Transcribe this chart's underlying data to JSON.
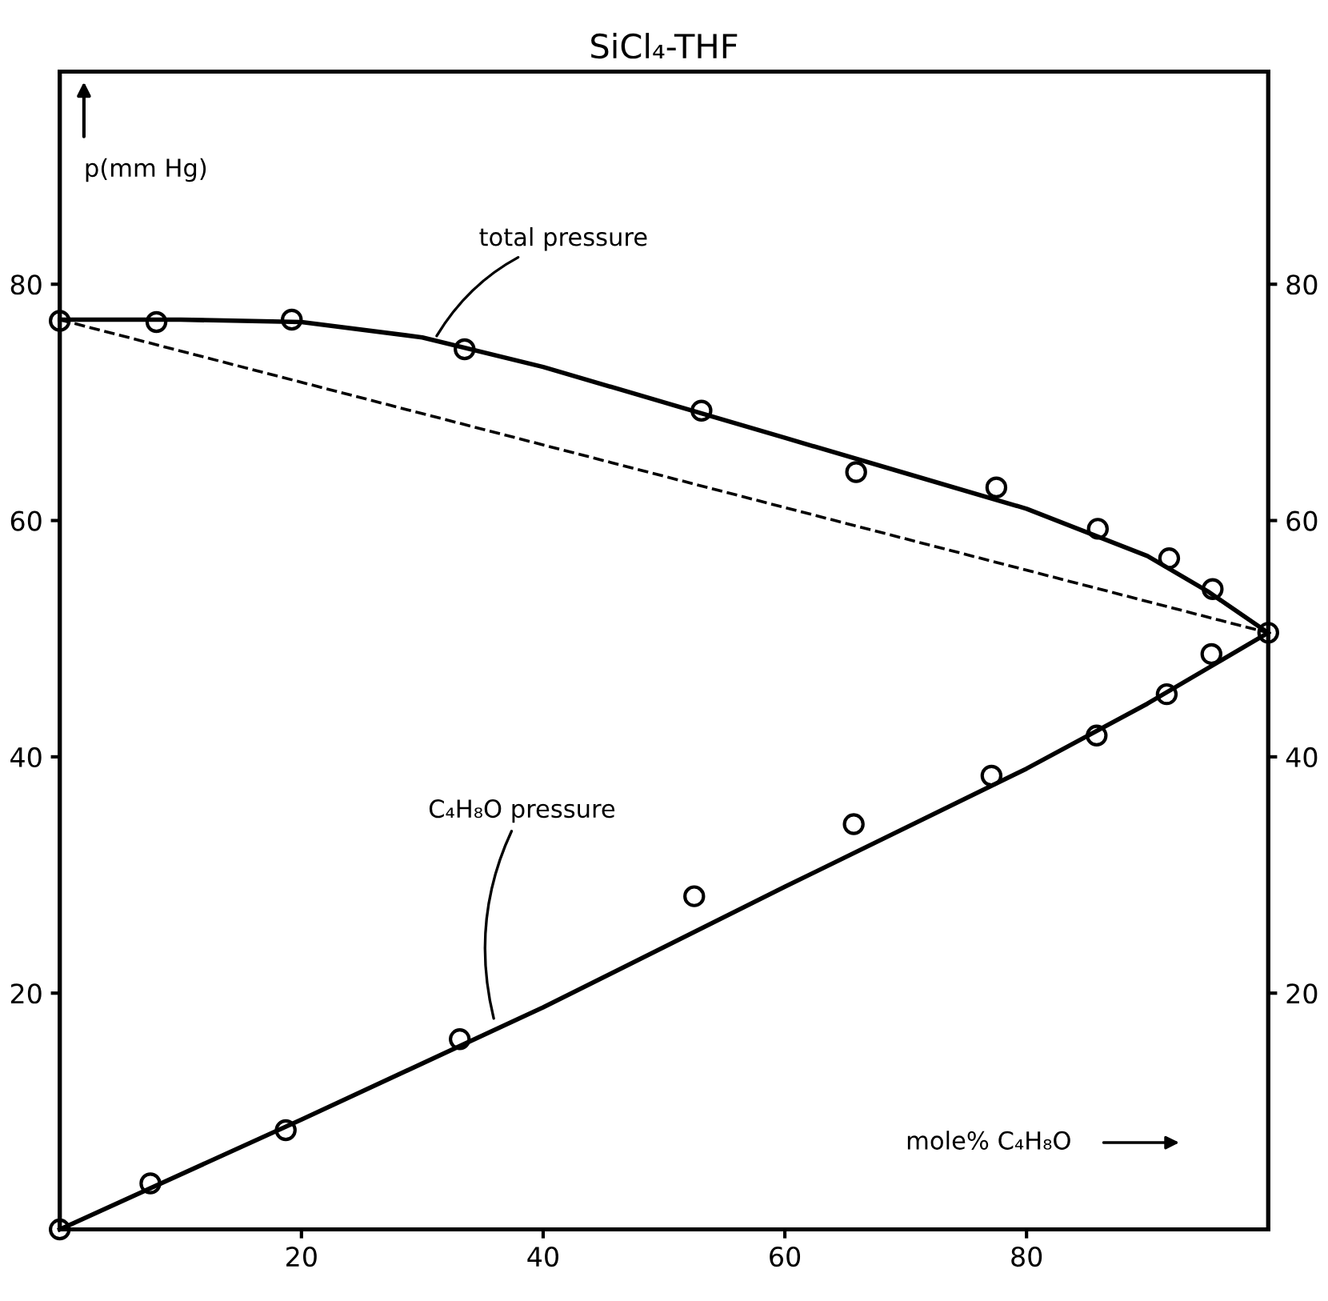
{
  "chart_data": {
    "type": "scatter",
    "title": "SiCl₄-THF",
    "xlabel": "mole% C₄H₈O",
    "ylabel": "p(mm Hg)",
    "xlim": [
      0,
      100
    ],
    "ylim": [
      0,
      98
    ],
    "y2lim": [
      0,
      98
    ],
    "xticks": [
      20,
      40,
      60,
      80
    ],
    "yticks": [
      20,
      40,
      60,
      80
    ],
    "y2ticks": [
      20,
      40,
      60,
      80
    ],
    "grid": false,
    "legend": false,
    "marker": "circle",
    "series": [
      {
        "color": "#000000",
        "x": [
          0,
          8.0,
          19.2,
          33.5,
          53.1,
          65.9,
          77.5,
          85.9,
          91.8,
          95.4,
          100
        ],
        "values": [
          76.9,
          76.8,
          77.0,
          74.5,
          69.3,
          64.1,
          62.8,
          59.3,
          56.8,
          54.2,
          50.5
        ]
      },
      {
        "color": "#000000",
        "x": [
          0,
          7.5,
          18.7,
          33.1,
          52.5,
          65.7,
          77.1,
          85.8,
          91.6,
          95.3
        ],
        "values": [
          0,
          3.9,
          8.4,
          16.1,
          28.2,
          34.3,
          38.4,
          41.8,
          45.3,
          48.7
        ]
      },
      {
        "type": "line",
        "color": "#000000",
        "line_style": "solid",
        "marker": "none",
        "x": [
          0,
          10,
          20,
          30,
          40,
          50,
          60,
          70,
          80,
          90,
          95,
          100
        ],
        "values": [
          77,
          77,
          76.8,
          75.5,
          73,
          70,
          67,
          64,
          61,
          57,
          54,
          50.5
        ]
      },
      {
        "type": "line",
        "color": "#000000",
        "line_style": "solid",
        "marker": "none",
        "x": [
          0,
          20,
          40,
          60,
          80,
          90,
          100
        ],
        "values": [
          0,
          9.3,
          18.8,
          29,
          39,
          44.5,
          50.5
        ]
      },
      {
        "type": "line",
        "color": "#000000",
        "line_style": "dashed",
        "marker": "none",
        "x": [
          0,
          100
        ],
        "values": [
          77,
          50.5
        ]
      }
    ],
    "annotations": [
      {
        "text": "total pressure",
        "x": 31,
        "y": 75.3
      },
      {
        "text": "C₄H₈O pressure",
        "x": 36,
        "y": 17.5
      }
    ]
  }
}
